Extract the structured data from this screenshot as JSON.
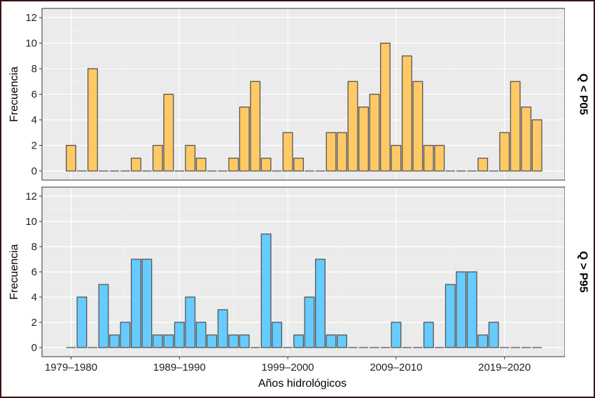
{
  "chart_data": {
    "type": "bar",
    "xlabel": "Años hidrológicos",
    "x_tick_labels": [
      "1979–1980",
      "1989–1990",
      "1999–2000",
      "2009–2010",
      "2019–2020"
    ],
    "categories": [
      "1979–1980",
      "1980–1981",
      "1981–1982",
      "1982–1983",
      "1983–1984",
      "1984–1985",
      "1985–1986",
      "1986–1987",
      "1987–1988",
      "1988–1989",
      "1989–1990",
      "1990–1991",
      "1991–1992",
      "1992–1993",
      "1993–1994",
      "1994–1995",
      "1995–1996",
      "1996–1997",
      "1997–1998",
      "1998–1999",
      "1999–2000",
      "2000–2001",
      "2001–2002",
      "2002–2003",
      "2003–2004",
      "2004–2005",
      "2005–2006",
      "2006–2007",
      "2007–2008",
      "2008–2009",
      "2009–2010",
      "2010–2011",
      "2011–2012",
      "2012–2013",
      "2013–2014",
      "2014–2015",
      "2015–2016",
      "2016–2017",
      "2017–2018",
      "2018–2019",
      "2019–2020",
      "2020–2021",
      "2021–2022",
      "2022–2023",
      "2023–2024"
    ],
    "ylim": [
      0,
      12.5
    ],
    "yticks": [
      0,
      2,
      4,
      6,
      8,
      10,
      12
    ],
    "grid": true,
    "panels": [
      {
        "strip_label": "Q < P05",
        "ylabel": "Frecuencia",
        "color": "#FFC966",
        "values": [
          2,
          0,
          8,
          0,
          0,
          0,
          1,
          0,
          2,
          6,
          0,
          2,
          1,
          0,
          0,
          1,
          5,
          7,
          1,
          0,
          3,
          1,
          0,
          0,
          3,
          3,
          7,
          5,
          6,
          10,
          2,
          9,
          7,
          2,
          2,
          0,
          0,
          0,
          1,
          0,
          3,
          7,
          5,
          4,
          null
        ]
      },
      {
        "strip_label": "Q > P95",
        "ylabel": "Frecuencia",
        "color": "#66CCFF",
        "values": [
          0,
          4,
          0,
          5,
          1,
          2,
          7,
          7,
          1,
          1,
          2,
          4,
          2,
          1,
          3,
          1,
          1,
          0,
          9,
          2,
          0,
          1,
          4,
          7,
          1,
          1,
          0,
          0,
          0,
          0,
          2,
          0,
          0,
          2,
          0,
          5,
          6,
          6,
          1,
          2,
          0,
          0,
          0,
          0,
          null
        ]
      }
    ]
  },
  "colors": {
    "panel_bg": "#EBEBEB",
    "bar_outline": "#555555",
    "strip_bg": "#FFFFFF"
  }
}
